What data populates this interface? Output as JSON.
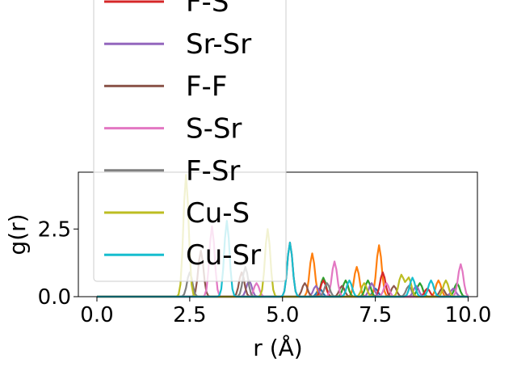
{
  "chart_data": {
    "type": "line",
    "xlabel": "r (Å)",
    "ylabel": "g(r)",
    "xlim": [
      -0.5,
      10.25
    ],
    "ylim": [
      0.0,
      4.6
    ],
    "xticks": [
      0.0,
      2.5,
      5.0,
      7.5,
      10.0
    ],
    "xtick_labels": [
      "0.0",
      "2.5",
      "5.0",
      "7.5",
      "10.0"
    ],
    "yticks": [
      0.0,
      2.5
    ],
    "ytick_labels": [
      "0.0",
      "2.5"
    ],
    "legend_position": "upper-left, overflowing above the axes",
    "grid": false,
    "series": [
      {
        "name": "F-S",
        "color": "#d62728",
        "peaks": [
          [
            5.2,
            2.0
          ],
          [
            6.1,
            0.6
          ],
          [
            7.7,
            0.9
          ],
          [
            8.9,
            0.3
          ]
        ]
      },
      {
        "name": "Sr-Sr",
        "color": "#9467bd",
        "peaks": [
          [
            4.1,
            0.6
          ],
          [
            5.9,
            0.4
          ],
          [
            7.4,
            0.5
          ],
          [
            8.6,
            0.4
          ],
          [
            9.6,
            0.3
          ]
        ]
      },
      {
        "name": "F-F",
        "color": "#8c564b",
        "peaks": [
          [
            2.8,
            1.7
          ],
          [
            3.9,
            0.9
          ],
          [
            5.6,
            0.5
          ],
          [
            6.6,
            0.4
          ],
          [
            8.0,
            0.4
          ],
          [
            9.3,
            0.3
          ]
        ]
      },
      {
        "name": "S-Sr",
        "color": "#e377c2",
        "peaks": [
          [
            3.1,
            2.6
          ],
          [
            4.3,
            0.5
          ],
          [
            6.4,
            1.3
          ],
          [
            7.8,
            0.5
          ],
          [
            9.8,
            1.2
          ]
        ]
      },
      {
        "name": "F-Sr",
        "color": "#7f7f7f",
        "peaks": [
          [
            2.5,
            0.9
          ],
          [
            4.0,
            1.1
          ],
          [
            6.2,
            0.5
          ],
          [
            8.4,
            0.4
          ]
        ]
      },
      {
        "name": "Cu-S",
        "color": "#bcbd22",
        "peaks": [
          [
            2.4,
            4.5
          ],
          [
            4.6,
            2.5
          ],
          [
            7.2,
            0.5
          ],
          [
            8.2,
            0.8
          ],
          [
            8.4,
            0.7
          ],
          [
            9.4,
            0.6
          ]
        ]
      },
      {
        "name": "Cu-Sr",
        "color": "#17becf",
        "peaks": [
          [
            3.5,
            2.8
          ],
          [
            5.2,
            2.0
          ],
          [
            6.8,
            0.6
          ],
          [
            8.5,
            0.7
          ],
          [
            9.0,
            0.6
          ]
        ]
      }
    ],
    "extra_lines": [
      {
        "color": "#1f77b4",
        "peaks": [
          [
            6.0,
            0.3
          ],
          [
            7.5,
            0.3
          ]
        ]
      },
      {
        "color": "#ff7f0e",
        "peaks": [
          [
            5.8,
            1.6
          ],
          [
            7.0,
            1.1
          ],
          [
            7.6,
            1.9
          ],
          [
            9.2,
            0.6
          ]
        ]
      },
      {
        "color": "#2ca02c",
        "peaks": [
          [
            6.1,
            0.7
          ],
          [
            6.7,
            0.6
          ],
          [
            7.3,
            0.6
          ],
          [
            8.7,
            0.5
          ],
          [
            9.7,
            0.5
          ]
        ]
      }
    ]
  }
}
